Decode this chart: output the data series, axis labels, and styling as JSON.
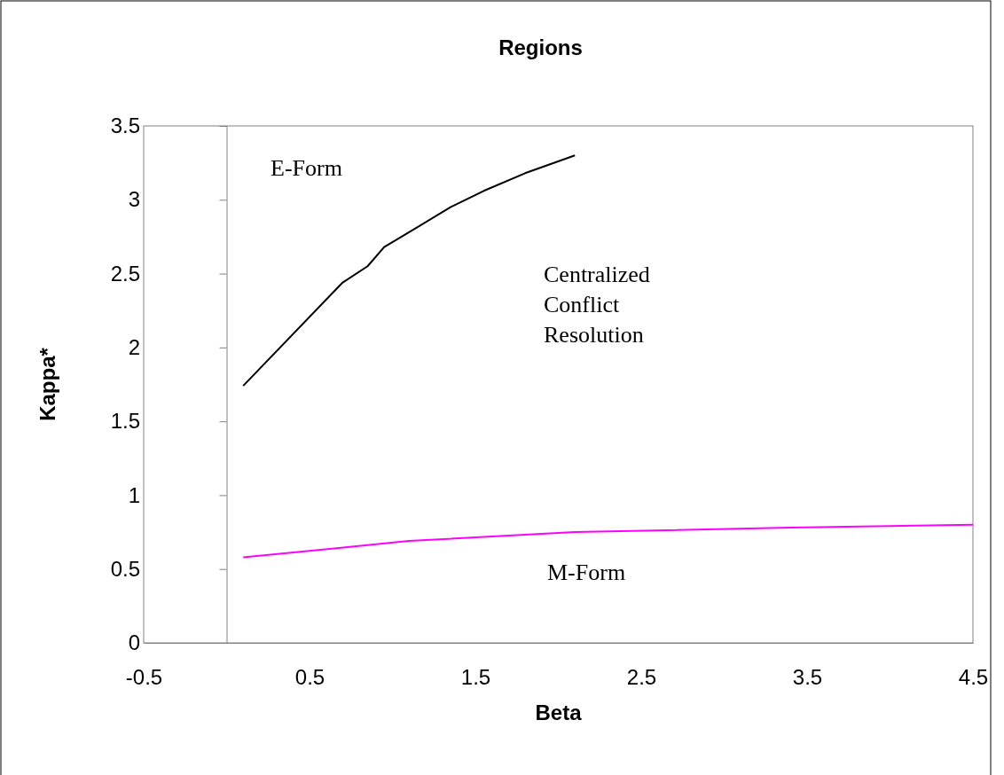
{
  "chart_data": {
    "type": "line",
    "title": "Regions",
    "xlabel": "Beta",
    "ylabel": "Kappa*",
    "xlim": [
      -0.5,
      4.5
    ],
    "xticks": [
      -0.5,
      0.5,
      1.5,
      2.5,
      3.5,
      4.5
    ],
    "ylim": [
      0,
      3.5
    ],
    "yticks": [
      0,
      0.5,
      1,
      1.5,
      2,
      2.5,
      3,
      3.5
    ],
    "grid": false,
    "marker": "none",
    "line_style": "solid",
    "series": [
      {
        "color": "#000000",
        "x": [
          0.1,
          0.7,
          0.85,
          0.95,
          1.1,
          1.35,
          1.55,
          1.8,
          2.1
        ],
        "values": [
          1.74,
          2.44,
          2.55,
          2.68,
          2.78,
          2.95,
          3.06,
          3.18,
          3.3
        ]
      },
      {
        "color": "#ff00ff",
        "x": [
          0.1,
          0.65,
          1.1,
          1.6,
          2.1,
          3.4,
          4.5
        ],
        "values": [
          0.58,
          0.64,
          0.69,
          0.72,
          0.75,
          0.78,
          0.8
        ]
      }
    ],
    "annotations": [
      "E-Form",
      "Centralized\nConflict\nResolution",
      "M-Form"
    ]
  }
}
